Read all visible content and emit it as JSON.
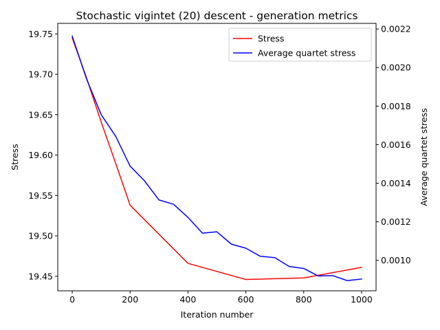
{
  "chart_data": {
    "type": "line",
    "title": "Stochastic vigintet (20) descent - generation metrics",
    "xlabel": "Iteration number",
    "ylabel": "Stress",
    "y2label": "Average quartet stress",
    "xlim": [
      -50,
      1050
    ],
    "ylim": [
      19.432,
      19.763
    ],
    "y2lim": [
      0.000842,
      0.002229
    ],
    "x_ticks": [
      0,
      200,
      400,
      600,
      800,
      1000
    ],
    "y_ticks": [
      19.45,
      19.5,
      19.55,
      19.6,
      19.65,
      19.7,
      19.75
    ],
    "y2_ticks": [
      0.001,
      0.0012,
      0.0014,
      0.0016,
      0.0018,
      0.002,
      0.0022
    ],
    "legend_position": "top-right",
    "grid": false,
    "series": [
      {
        "name": "Stress",
        "axis": "left",
        "color": "#ff0000",
        "x": [
          0,
          50,
          100,
          150,
          200,
          400,
          600,
          800,
          1000
        ],
        "values": [
          19.745,
          19.695,
          19.641,
          19.59,
          19.538,
          19.466,
          19.446,
          19.448,
          19.461
        ]
      },
      {
        "name": "Average quartet stress",
        "axis": "right",
        "color": "#0000ff",
        "x": [
          0,
          50,
          100,
          150,
          200,
          250,
          300,
          350,
          400,
          450,
          500,
          550,
          600,
          650,
          700,
          750,
          800,
          850,
          900,
          950,
          1000
        ],
        "values": [
          0.002163,
          0.001939,
          0.001756,
          0.001644,
          0.001489,
          0.001412,
          0.001313,
          0.001291,
          0.001223,
          0.001141,
          0.001148,
          0.001084,
          0.001063,
          0.001021,
          0.001014,
          0.000968,
          0.000958,
          0.000919,
          0.000921,
          0.000895,
          0.000903
        ]
      }
    ]
  }
}
